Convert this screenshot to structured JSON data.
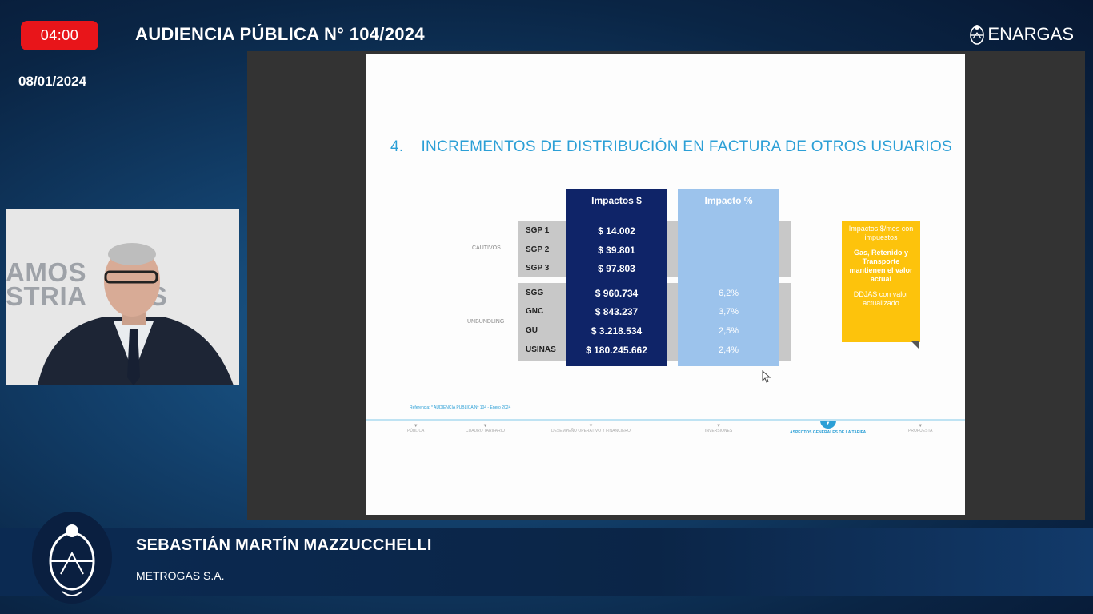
{
  "header": {
    "timer": "04:00",
    "title": "AUDIENCIA PÚBLICA N° 104/2024",
    "date": "08/01/2024",
    "brand": "ENARGAS"
  },
  "webcam": {
    "wall_text_line1": "AMOS",
    "wall_text_line2": "STRIA   GAS"
  },
  "slide": {
    "number": "4.",
    "title": "INCREMENTOS DE DISTRIBUCIÓN EN FACTURA DE OTROS USUARIOS",
    "group_cautivos": "CAUTIVOS",
    "group_unbundling": "UNBUNDLING",
    "col_impactos_header": "Impactos $",
    "col_pct_header": "Impacto %",
    "rows": [
      {
        "label": "SGP 1",
        "impacto": "$ 14.002",
        "pct": ""
      },
      {
        "label": "SGP 2",
        "impacto": "$ 39.801",
        "pct": ""
      },
      {
        "label": "SGP 3",
        "impacto": "$ 97.803",
        "pct": ""
      },
      {
        "label": "SGG",
        "impacto": "$ 960.734",
        "pct": "6,2%"
      },
      {
        "label": "GNC",
        "impacto": "$ 843.237",
        "pct": "3,7%"
      },
      {
        "label": "GU",
        "impacto": "$ 3.218.534",
        "pct": "2,5%"
      },
      {
        "label": "USINAS",
        "impacto": "$ 180.245.662",
        "pct": "2,4%"
      }
    ],
    "note": {
      "p1": "Impactos $/mes con impuestos",
      "p2": "Gas, Retenido y Transporte mantienen el valor actual",
      "p3": "DDJAS con valor actualizado"
    },
    "footnote": "Referencia: * AUDIENCIA PÚBLICA Nº 104 - Enero 2024",
    "steps": [
      {
        "label": "PÚBLICA",
        "active": false
      },
      {
        "label": "CUADRO TARIFARIO",
        "active": false
      },
      {
        "label": "DESEMPEÑO OPERATIVO Y FINANCIERO",
        "active": false
      },
      {
        "label": "INVERSIONES",
        "active": false
      },
      {
        "label": "ASPECTOS GENERALES DE LA TARIFA",
        "active": true
      },
      {
        "label": "PROPUESTA",
        "active": false
      }
    ]
  },
  "speaker": {
    "name": "SEBASTIÁN MARTÍN MAZZUCCHELLI",
    "organization": "METROGAS S.A."
  },
  "colors": {
    "timer_red": "#e8151a",
    "slide_title_blue": "#2b9fd6",
    "impactos_navy": "#0f2468",
    "impacto_pct_light_blue": "#9cc3ec",
    "note_yellow": "#fdc30c"
  }
}
